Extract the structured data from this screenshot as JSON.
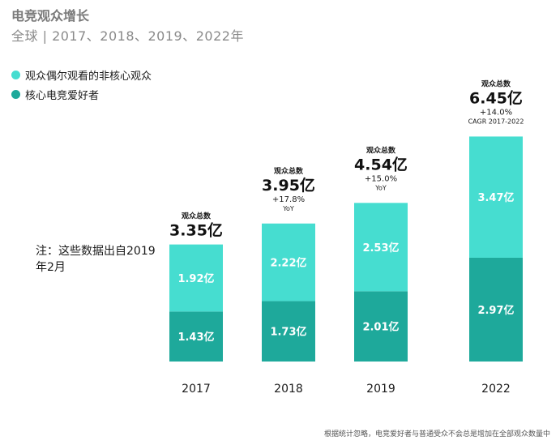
{
  "title": "电竞观众增长",
  "subtitle": "全球 | 2017、2018、2019、2022年",
  "legend": {
    "casual": "观众偶尔观看的非核心观众",
    "core": "核心电竞爱好者"
  },
  "note": "注：这些数据出自2019年2月",
  "footnote": "根据统计忽略，电竞爱好者与普通受众不会总是增加在全部观众数量中",
  "colors": {
    "casual": "#46ddd0",
    "core": "#1ea99b"
  },
  "chart_data": {
    "type": "bar",
    "stacked": true,
    "categories": [
      "2017",
      "2018",
      "2019",
      "2022"
    ],
    "series": [
      {
        "name": "核心电竞爱好者",
        "values": [
          1.43,
          1.73,
          2.01,
          2.97
        ],
        "labels": [
          "1.43亿",
          "1.73亿",
          "2.01亿",
          "2.97亿"
        ]
      },
      {
        "name": "观众偶尔观看的非核心观众",
        "values": [
          1.92,
          2.22,
          2.53,
          3.47
        ],
        "labels": [
          "1.92亿",
          "2.22亿",
          "2.53亿",
          "3.47亿"
        ]
      }
    ],
    "totals": [
      {
        "caption": "观众总数",
        "value": 3.35,
        "label": "3.35亿",
        "growth": "",
        "growth_note": ""
      },
      {
        "caption": "观众总数",
        "value": 3.95,
        "label": "3.95亿",
        "growth": "+17.8%",
        "growth_note": "YoY"
      },
      {
        "caption": "观众总数",
        "value": 4.54,
        "label": "4.54亿",
        "growth": "+15.0%",
        "growth_note": "YoY"
      },
      {
        "caption": "观众总数",
        "value": 6.45,
        "label": "6.45亿",
        "growth": "+14.0%",
        "growth_note": "CAGR 2017-2022"
      }
    ],
    "ylim": [
      0,
      6.45
    ]
  }
}
